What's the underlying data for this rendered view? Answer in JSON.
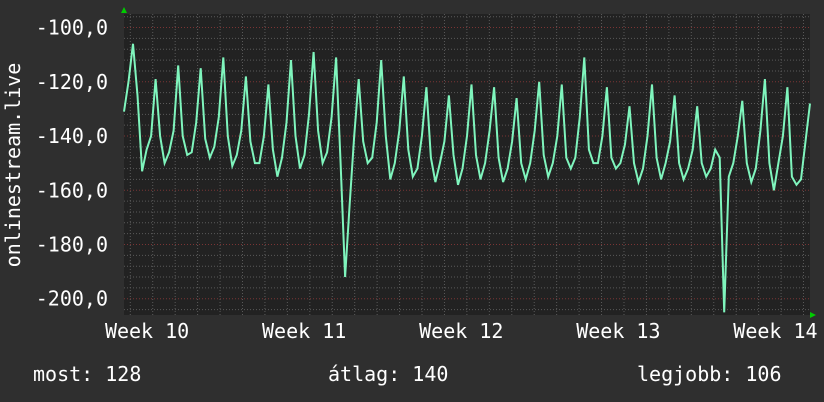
{
  "chart_data": {
    "type": "line",
    "ylabel": "onlinestream.live",
    "xlabel": "",
    "ylim": [
      -206,
      -95
    ],
    "xlim": [
      9.853,
      14.22
    ],
    "yticks": [
      -100,
      -120,
      -140,
      -160,
      -180,
      -200
    ],
    "ytick_labels": [
      "-100,0",
      "-120,0",
      "-140,0",
      "-160,0",
      "-180,0",
      "-200,0"
    ],
    "xticks": [
      10,
      11,
      12,
      13,
      14
    ],
    "xtick_labels": [
      "Week 10",
      "Week 11",
      "Week 12",
      "Week 13",
      "Week 14"
    ],
    "grid": true,
    "colors": {
      "line": "#7ff5bd",
      "background": "#222222",
      "canvas": "#2f2f2f",
      "grid_minor": "#5a5a5a",
      "grid_major": "#7a3434",
      "arrow": "#00cc00"
    },
    "series": [
      {
        "values": [
          -131,
          -120,
          -106,
          -125,
          -153,
          -145,
          -140,
          -119,
          -140,
          -150,
          -146,
          -138,
          -114,
          -140,
          -147,
          -146,
          -135,
          -115,
          -141,
          -148,
          -144,
          -133,
          -111,
          -140,
          -151,
          -147,
          -138,
          -118,
          -142,
          -150,
          -150,
          -140,
          -121,
          -145,
          -155,
          -148,
          -135,
          -112,
          -140,
          -152,
          -147,
          -132,
          -109,
          -138,
          -150,
          -146,
          -133,
          -111,
          -150,
          -192,
          -165,
          -140,
          -119,
          -142,
          -150,
          -148,
          -135,
          -112,
          -140,
          -156,
          -150,
          -138,
          -118,
          -145,
          -155,
          -152,
          -140,
          -122,
          -148,
          -157,
          -150,
          -142,
          -125,
          -147,
          -158,
          -152,
          -140,
          -121,
          -147,
          -156,
          -150,
          -138,
          -122,
          -148,
          -157,
          -152,
          -142,
          -126,
          -150,
          -156,
          -150,
          -138,
          -120,
          -147,
          -155,
          -150,
          -140,
          -121,
          -148,
          -152,
          -148,
          -133,
          -111,
          -145,
          -150,
          -150,
          -140,
          -122,
          -148,
          -152,
          -150,
          -143,
          -129,
          -150,
          -157,
          -152,
          -140,
          -121,
          -148,
          -156,
          -150,
          -142,
          -125,
          -150,
          -156,
          -152,
          -145,
          -129,
          -150,
          -155,
          -152,
          -145,
          -148,
          -205,
          -155,
          -150,
          -140,
          -127,
          -150,
          -157,
          -152,
          -138,
          -119,
          -150,
          -160,
          -150,
          -140,
          -122,
          -155,
          -158,
          -156,
          -142,
          -128
        ]
      }
    ]
  },
  "legend": {
    "current": "most: 128",
    "average": "átlag: 140",
    "max": "legjobb: 106"
  }
}
